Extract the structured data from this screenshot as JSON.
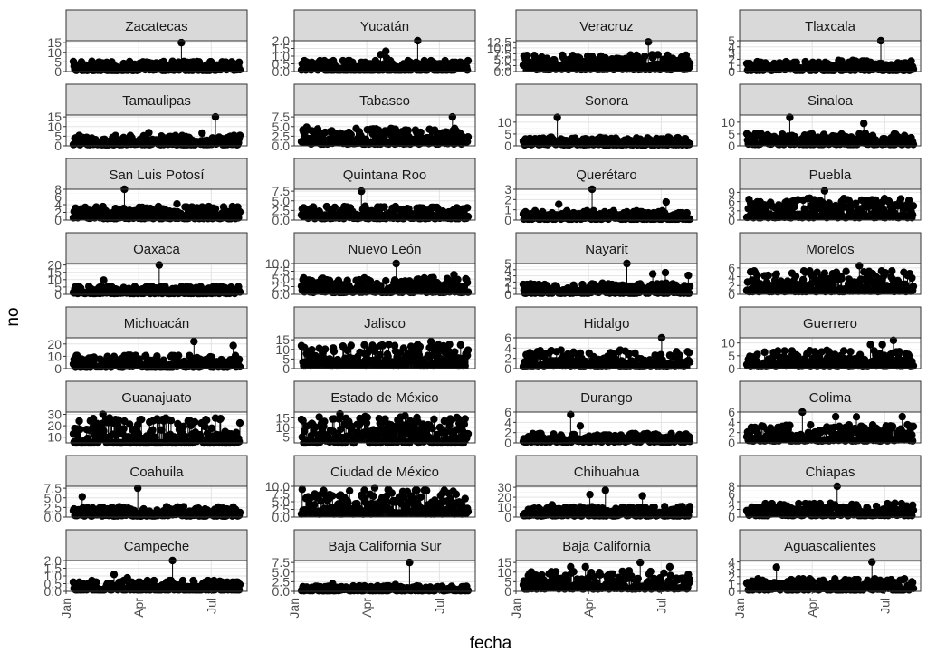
{
  "chart_data": {
    "type": "lollipop-facet",
    "xlabel": "fecha",
    "ylabel": "no",
    "x_domain": [
      "2020-01-01",
      "2020-08-15"
    ],
    "x_ticks": [
      "Jan",
      "Apr",
      "Jul"
    ],
    "x_tick_dates": [
      "2020-01-01",
      "2020-04-01",
      "2020-07-01"
    ],
    "grid": true,
    "panels": [
      {
        "name": "Zacatecas",
        "ylim": [
          0,
          16
        ],
        "yticks": [
          0,
          5,
          10,
          15
        ],
        "peak": 15,
        "typical": 3
      },
      {
        "name": "Yucatán",
        "ylim": [
          0,
          2
        ],
        "yticks": [
          0.0,
          0.5,
          1.0,
          1.5,
          2.0
        ],
        "peak": 2,
        "typical": 0.4
      },
      {
        "name": "Veracruz",
        "ylim": [
          0,
          13
        ],
        "yticks": [
          0.0,
          2.5,
          5.0,
          7.5,
          10.0,
          12.5
        ],
        "peak": 12.5,
        "typical": 4
      },
      {
        "name": "Tlaxcala",
        "ylim": [
          0,
          5
        ],
        "yticks": [
          0,
          1,
          2,
          3,
          4,
          5
        ],
        "peak": 5,
        "typical": 1
      },
      {
        "name": "Tamaulipas",
        "ylim": [
          0,
          16
        ],
        "yticks": [
          0,
          5,
          10,
          15
        ],
        "peak": 15,
        "typical": 3
      },
      {
        "name": "Tabasco",
        "ylim": [
          0,
          8
        ],
        "yticks": [
          0.0,
          2.5,
          5.0,
          7.5
        ],
        "peak": 7.5,
        "typical": 2.5
      },
      {
        "name": "Sonora",
        "ylim": [
          0,
          13
        ],
        "yticks": [
          0,
          5,
          10
        ],
        "peak": 12,
        "typical": 2
      },
      {
        "name": "Sinaloa",
        "ylim": [
          0,
          13
        ],
        "yticks": [
          0,
          5,
          10
        ],
        "peak": 12,
        "typical": 3
      },
      {
        "name": "San Luis Potosí",
        "ylim": [
          0,
          8
        ],
        "yticks": [
          0,
          2,
          4,
          6,
          8
        ],
        "peak": 8,
        "typical": 2
      },
      {
        "name": "Quintana Roo",
        "ylim": [
          0,
          8
        ],
        "yticks": [
          0.0,
          2.5,
          5.0,
          7.5
        ],
        "peak": 7.5,
        "typical": 2
      },
      {
        "name": "Querétaro",
        "ylim": [
          0,
          3
        ],
        "yticks": [
          0,
          1,
          2,
          3
        ],
        "peak": 3,
        "typical": 0.5
      },
      {
        "name": "Puebla",
        "ylim": [
          0,
          10
        ],
        "yticks": [
          0,
          3,
          6,
          9
        ],
        "peak": 9.5,
        "typical": 4
      },
      {
        "name": "Oaxaca",
        "ylim": [
          0,
          21
        ],
        "yticks": [
          0,
          5,
          10,
          15,
          20
        ],
        "peak": 20,
        "typical": 3
      },
      {
        "name": "Nuevo León",
        "ylim": [
          0,
          10
        ],
        "yticks": [
          0.0,
          2.5,
          5.0,
          7.5,
          10.0
        ],
        "peak": 10,
        "typical": 3
      },
      {
        "name": "Nayarit",
        "ylim": [
          0,
          5
        ],
        "yticks": [
          0,
          1,
          2,
          3,
          4,
          5
        ],
        "peak": 5,
        "typical": 1
      },
      {
        "name": "Morelos",
        "ylim": [
          0,
          7
        ],
        "yticks": [
          0,
          2,
          4,
          6
        ],
        "peak": 6.5,
        "typical": 3
      },
      {
        "name": "Michoacán",
        "ylim": [
          0,
          25
        ],
        "yticks": [
          0,
          10,
          20
        ],
        "peak": 22,
        "typical": 6
      },
      {
        "name": "Jalisco",
        "ylim": [
          0,
          16
        ],
        "yticks": [
          0,
          5,
          10,
          15
        ],
        "peak": 14,
        "typical": 7
      },
      {
        "name": "Hidalgo",
        "ylim": [
          0,
          6
        ],
        "yticks": [
          0,
          2,
          4,
          6
        ],
        "peak": 6,
        "typical": 2
      },
      {
        "name": "Guerrero",
        "ylim": [
          0,
          12
        ],
        "yticks": [
          0,
          5,
          10
        ],
        "peak": 11,
        "typical": 4
      },
      {
        "name": "Guanajuato",
        "ylim": [
          5,
          32
        ],
        "yticks": [
          10,
          20,
          30
        ],
        "peak": 30,
        "typical": 15
      },
      {
        "name": "Estado de México",
        "ylim": [
          2,
          18
        ],
        "yticks": [
          5,
          10,
          15
        ],
        "peak": 17,
        "typical": 9
      },
      {
        "name": "Durango",
        "ylim": [
          0,
          6
        ],
        "yticks": [
          0,
          2,
          4,
          6
        ],
        "peak": 5.5,
        "typical": 1
      },
      {
        "name": "Colima",
        "ylim": [
          0,
          6
        ],
        "yticks": [
          0,
          2,
          4,
          6
        ],
        "peak": 6,
        "typical": 2
      },
      {
        "name": "Coahuila",
        "ylim": [
          0,
          8
        ],
        "yticks": [
          0.0,
          2.5,
          5.0,
          7.5
        ],
        "peak": 7.5,
        "typical": 1.5
      },
      {
        "name": "Ciudad de México",
        "ylim": [
          0,
          10
        ],
        "yticks": [
          0.0,
          2.5,
          5.0,
          7.5,
          10.0
        ],
        "peak": 9.5,
        "typical": 5
      },
      {
        "name": "Chihuahua",
        "ylim": [
          0,
          31
        ],
        "yticks": [
          0,
          10,
          20,
          30
        ],
        "peak": 27,
        "typical": 6
      },
      {
        "name": "Chiapas",
        "ylim": [
          0,
          8
        ],
        "yticks": [
          0,
          2,
          4,
          6,
          8
        ],
        "peak": 8,
        "typical": 2
      },
      {
        "name": "Campeche",
        "ylim": [
          0,
          2
        ],
        "yticks": [
          0.0,
          0.5,
          1.0,
          1.5,
          2.0
        ],
        "peak": 2,
        "typical": 0.4
      },
      {
        "name": "Baja California Sur",
        "ylim": [
          0,
          8
        ],
        "yticks": [
          0.0,
          2.5,
          5.0,
          7.5
        ],
        "peak": 7.5,
        "typical": 0.8
      },
      {
        "name": "Baja California",
        "ylim": [
          0,
          16
        ],
        "yticks": [
          0,
          5,
          10,
          15
        ],
        "peak": 15,
        "typical": 6
      },
      {
        "name": "Aguascalientes",
        "ylim": [
          0,
          4.2
        ],
        "yticks": [
          0,
          1,
          2,
          3,
          4
        ],
        "peak": 4,
        "typical": 1
      }
    ]
  }
}
